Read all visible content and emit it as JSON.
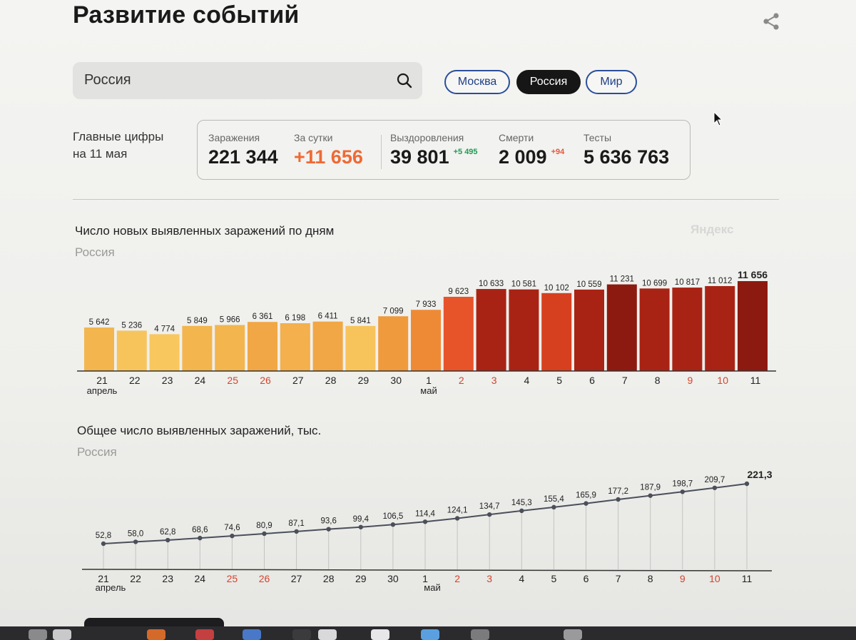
{
  "page": {
    "title": "Развитие событий",
    "search_value": "Россия",
    "tabs": [
      {
        "label": "Москва",
        "active": false
      },
      {
        "label": "Россия",
        "active": true
      },
      {
        "label": "Мир",
        "active": false
      }
    ]
  },
  "summary": {
    "label_line1": "Главные цифры",
    "label_line2": "на 11 мая",
    "infections": {
      "label": "Заражения",
      "value": "221 344"
    },
    "per_day": {
      "label": "За сутки",
      "value": "+11 656"
    },
    "recovered": {
      "label": "Выздоровления",
      "value": "39 801",
      "delta": "+5 495"
    },
    "deaths": {
      "label": "Смерти",
      "value": "2 009",
      "delta": "+94"
    },
    "tests": {
      "label": "Тесты",
      "value": "5 636 763"
    }
  },
  "colors": {
    "weekend_tick": "#d2452f",
    "recovered_delta": "#1f9b55",
    "deaths_delta": "#e8563a",
    "per_day_value": "#ee6a34",
    "line": "#4a4f5a"
  },
  "icons": {
    "share": "share-icon",
    "search": "search-icon",
    "cursor": "cursor-icon",
    "brand": "yandex-logo"
  },
  "brand_text": "Яндекс",
  "chart_data": [
    {
      "type": "bar",
      "title": "Число новых выявленных заражений по дням",
      "subtitle": "Россия",
      "categories": [
        "21",
        "22",
        "23",
        "24",
        "25",
        "26",
        "27",
        "28",
        "29",
        "30",
        "1",
        "2",
        "3",
        "4",
        "5",
        "6",
        "7",
        "8",
        "9",
        "10",
        "11"
      ],
      "month_labels": [
        {
          "at": "21",
          "label": "апрель"
        },
        {
          "at": "1",
          "label": "май"
        }
      ],
      "weekend_categories": [
        "25",
        "26",
        "2",
        "3",
        "9",
        "10"
      ],
      "values": [
        5642,
        5236,
        4774,
        5849,
        5966,
        6361,
        6198,
        6411,
        5841,
        7099,
        7933,
        9623,
        10633,
        10581,
        10102,
        10559,
        11231,
        10699,
        10817,
        11012,
        11656
      ],
      "value_labels": [
        "5 642",
        "5 236",
        "4 774",
        "5 849",
        "5 966",
        "6 361",
        "6 198",
        "6 411",
        "5 841",
        "7 099",
        "7 933",
        "9 623",
        "10 633",
        "10 581",
        "10 102",
        "10 559",
        "11 231",
        "10 699",
        "10 817",
        "11 012",
        "11 656"
      ],
      "bar_colors": [
        "#f3b54e",
        "#f7c45c",
        "#f8c85e",
        "#f3b54e",
        "#f3b54e",
        "#f1a745",
        "#f3b04c",
        "#f1a745",
        "#f7c45c",
        "#ef9a3c",
        "#ee8a36",
        "#e8542a",
        "#a92314",
        "#a92314",
        "#d7401f",
        "#a92314",
        "#8d1a10",
        "#a92314",
        "#a92314",
        "#a92314",
        "#8d1a10"
      ],
      "ylim": [
        0,
        11656
      ]
    },
    {
      "type": "line",
      "title": "Общее число выявленных заражений, тыс.",
      "subtitle": "Россия",
      "categories": [
        "21",
        "22",
        "23",
        "24",
        "25",
        "26",
        "27",
        "28",
        "29",
        "30",
        "1",
        "2",
        "3",
        "4",
        "5",
        "6",
        "7",
        "8",
        "9",
        "10",
        "11"
      ],
      "month_labels": [
        {
          "at": "21",
          "label": "апрель"
        },
        {
          "at": "1",
          "label": "май"
        }
      ],
      "weekend_categories": [
        "25",
        "26",
        "2",
        "3",
        "9",
        "10"
      ],
      "values": [
        52.8,
        58.0,
        62.8,
        68.6,
        74.6,
        80.9,
        87.1,
        93.6,
        99.4,
        106.5,
        114.4,
        124.1,
        134.7,
        145.3,
        155.4,
        165.9,
        177.2,
        187.9,
        198.7,
        209.7,
        221.3
      ],
      "value_labels": [
        "52,8",
        "58,0",
        "62,8",
        "68,6",
        "74,6",
        "80,9",
        "87,1",
        "93,6",
        "99,4",
        "106,5",
        "114,4",
        "124,1",
        "134,7",
        "145,3",
        "155,4",
        "165,9",
        "177,2",
        "187,9",
        "198,7",
        "209,7",
        "221,3"
      ]
    }
  ]
}
